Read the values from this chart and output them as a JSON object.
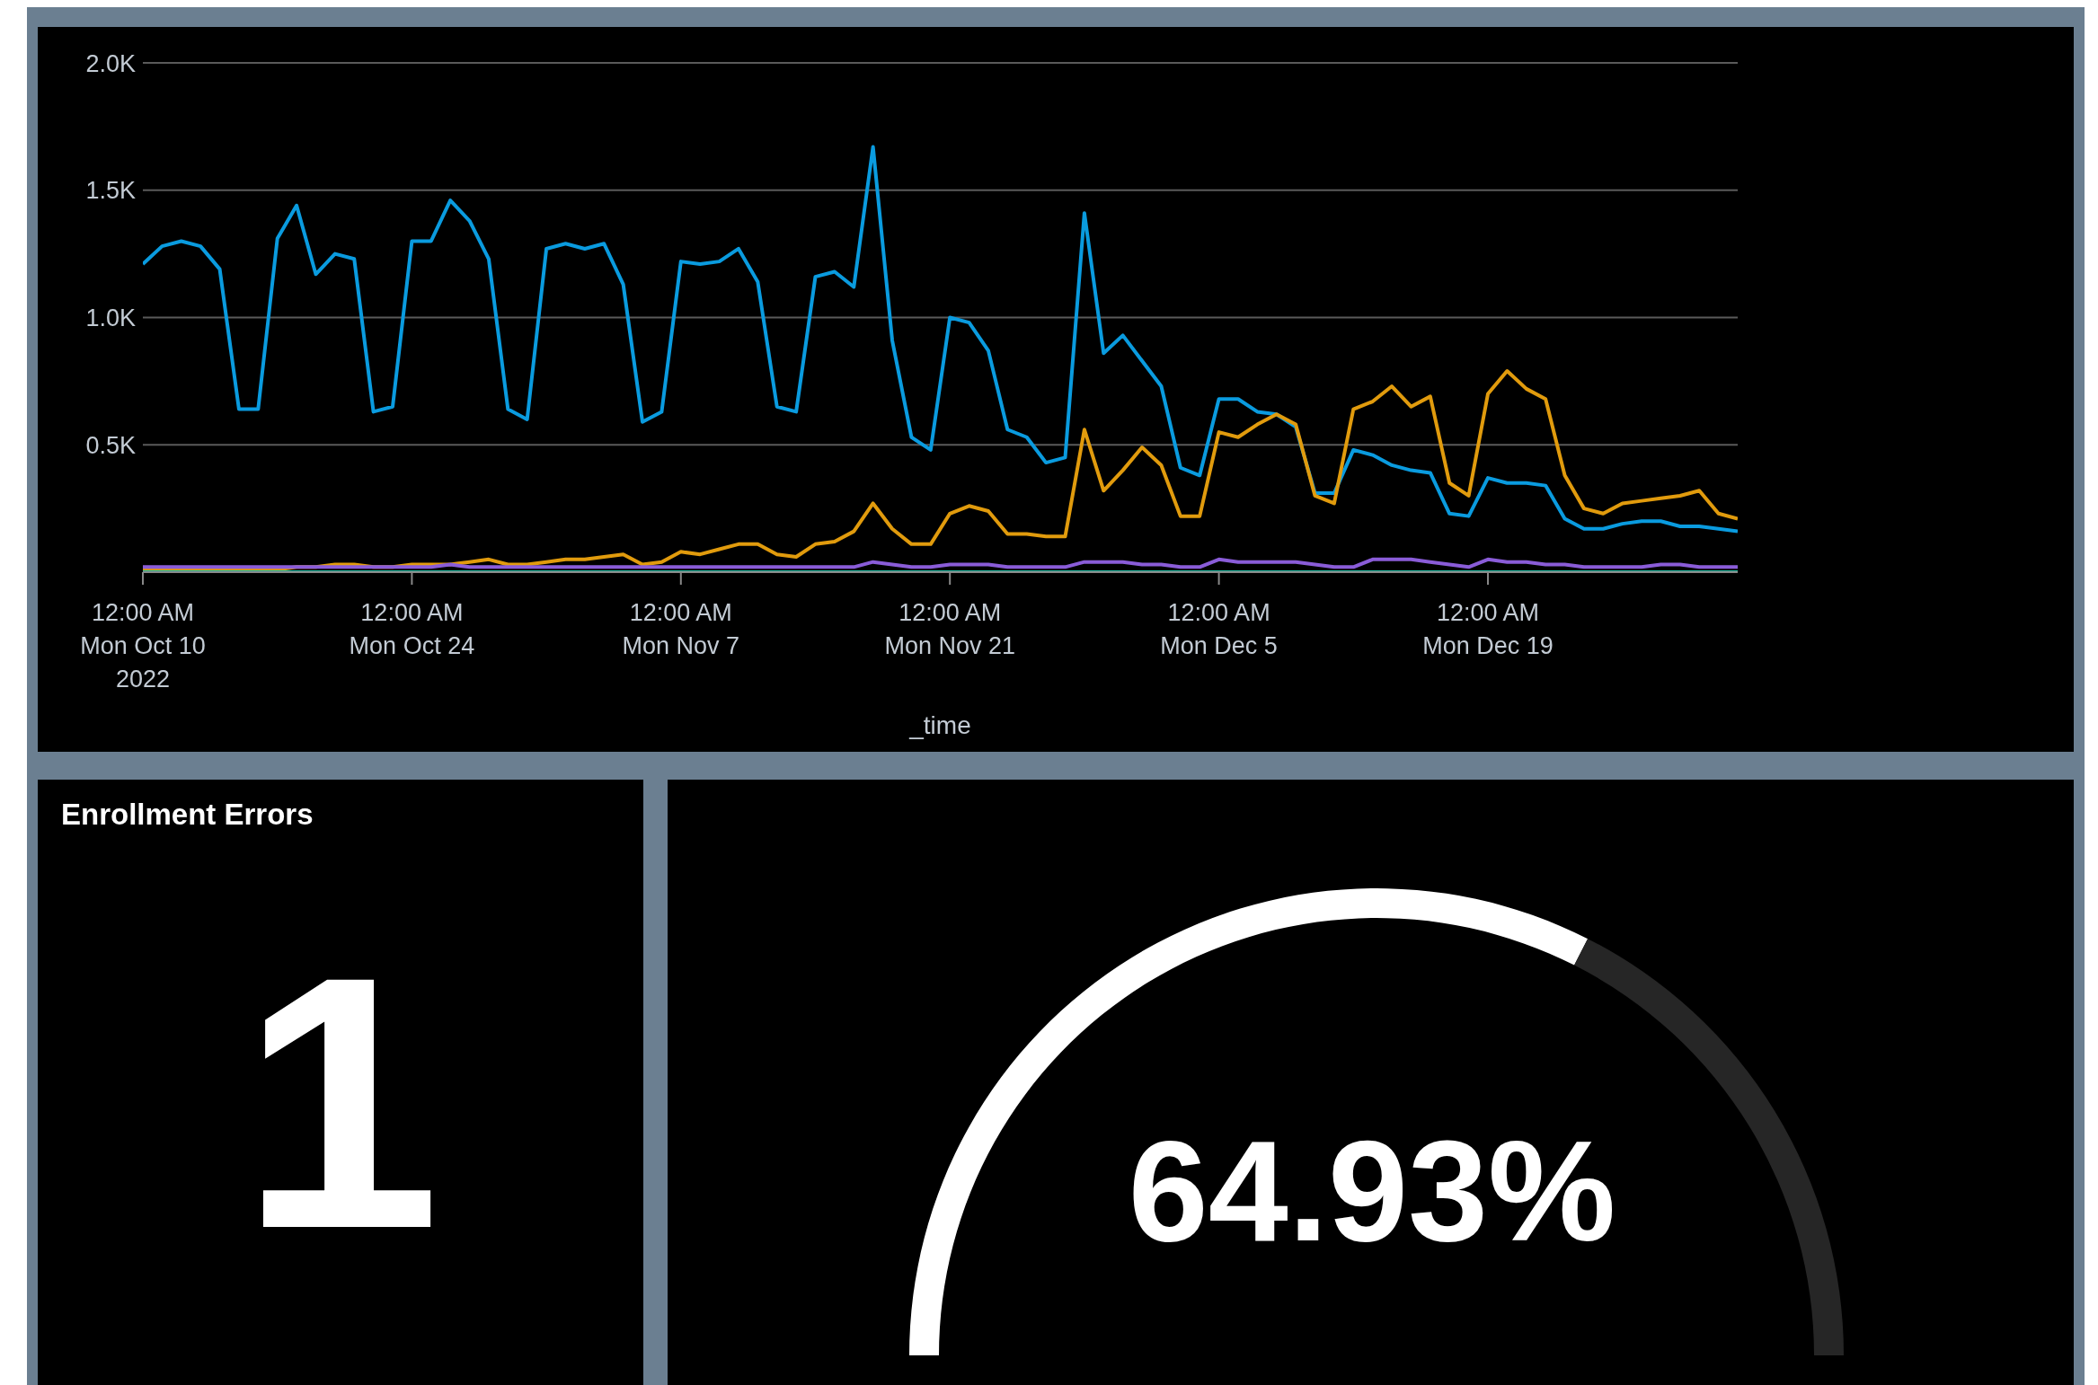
{
  "chart_data": [
    {
      "type": "line",
      "xlabel": "_time",
      "grid": "y",
      "marker": "none",
      "line_style": "solid",
      "x": [
        "2022-10-10",
        "2022-10-11",
        "2022-10-12",
        "2022-10-13",
        "2022-10-14",
        "2022-10-15",
        "2022-10-16",
        "2022-10-17",
        "2022-10-18",
        "2022-10-19",
        "2022-10-20",
        "2022-10-21",
        "2022-10-22",
        "2022-10-23",
        "2022-10-24",
        "2022-10-25",
        "2022-10-26",
        "2022-10-27",
        "2022-10-28",
        "2022-10-29",
        "2022-10-30",
        "2022-10-31",
        "2022-11-01",
        "2022-11-02",
        "2022-11-03",
        "2022-11-04",
        "2022-11-05",
        "2022-11-06",
        "2022-11-07",
        "2022-11-08",
        "2022-11-09",
        "2022-11-10",
        "2022-11-11",
        "2022-11-12",
        "2022-11-13",
        "2022-11-14",
        "2022-11-15",
        "2022-11-16",
        "2022-11-17",
        "2022-11-18",
        "2022-11-19",
        "2022-11-20",
        "2022-11-21",
        "2022-11-22",
        "2022-11-23",
        "2022-11-24",
        "2022-11-25",
        "2022-11-26",
        "2022-11-27",
        "2022-11-28",
        "2022-11-29",
        "2022-11-30",
        "2022-12-01",
        "2022-12-02",
        "2022-12-03",
        "2022-12-04",
        "2022-12-05",
        "2022-12-06",
        "2022-12-07",
        "2022-12-08",
        "2022-12-09",
        "2022-12-10",
        "2022-12-11",
        "2022-12-12",
        "2022-12-13",
        "2022-12-14",
        "2022-12-15",
        "2022-12-16",
        "2022-12-17",
        "2022-12-18",
        "2022-12-19",
        "2022-12-20",
        "2022-12-21",
        "2022-12-22",
        "2022-12-23",
        "2022-12-24",
        "2022-12-25",
        "2022-12-26",
        "2022-12-27",
        "2022-12-28",
        "2022-12-29",
        "2022-12-30",
        "2022-12-31",
        "2023-01-01"
      ],
      "series": [
        {
          "color": "#8a5cd8",
          "values": [
            20,
            20,
            20,
            20,
            20,
            20,
            20,
            20,
            20,
            20,
            20,
            20,
            20,
            20,
            20,
            20,
            30,
            20,
            20,
            20,
            20,
            20,
            20,
            20,
            20,
            20,
            20,
            20,
            20,
            20,
            20,
            20,
            20,
            20,
            20,
            20,
            20,
            20,
            40,
            30,
            20,
            20,
            30,
            30,
            30,
            20,
            20,
            20,
            20,
            40,
            40,
            40,
            30,
            30,
            20,
            20,
            50,
            40,
            40,
            40,
            40,
            30,
            20,
            20,
            50,
            50,
            50,
            40,
            30,
            20,
            50,
            40,
            40,
            30,
            30,
            20,
            20,
            20,
            20,
            30,
            30,
            20,
            20,
            20
          ]
        },
        {
          "color": "#0a9bdf",
          "values": [
            1210,
            1280,
            1300,
            1280,
            1190,
            640,
            640,
            1310,
            1440,
            1170,
            1250,
            1230,
            630,
            650,
            1300,
            1300,
            1460,
            1380,
            1230,
            640,
            600,
            1270,
            1290,
            1270,
            1290,
            1130,
            590,
            630,
            1220,
            1210,
            1220,
            1270,
            1140,
            650,
            630,
            1160,
            1180,
            1120,
            1670,
            910,
            530,
            480,
            1000,
            980,
            870,
            560,
            530,
            430,
            450,
            1410,
            860,
            930,
            830,
            730,
            410,
            380,
            680,
            680,
            630,
            620,
            570,
            310,
            310,
            480,
            460,
            420,
            400,
            390,
            230,
            220,
            370,
            350,
            350,
            340,
            210,
            170,
            170,
            190,
            200,
            200,
            180,
            180,
            170,
            160
          ]
        },
        {
          "color": "#1fb8a0",
          "values": [
            0,
            0,
            0,
            0,
            0,
            0,
            0,
            0,
            0,
            0,
            0,
            0,
            0,
            0,
            0,
            0,
            0,
            0,
            0,
            0,
            0,
            0,
            0,
            0,
            0,
            0,
            0,
            0,
            0,
            0,
            0,
            0,
            0,
            0,
            0,
            0,
            0,
            0,
            0,
            0,
            0,
            0,
            0,
            0,
            0,
            0,
            0,
            0,
            0,
            0,
            0,
            0,
            0,
            0,
            0,
            0,
            0,
            0,
            0,
            0,
            0,
            0,
            0,
            0,
            0,
            0,
            0,
            0,
            0,
            0,
            0,
            0,
            0,
            0,
            0,
            0,
            0,
            0,
            0,
            0,
            0,
            0,
            0,
            0
          ]
        },
        {
          "color": "#e19b0d",
          "values": [
            10,
            10,
            10,
            10,
            10,
            10,
            10,
            10,
            20,
            20,
            30,
            30,
            20,
            20,
            30,
            30,
            30,
            40,
            50,
            30,
            30,
            40,
            50,
            50,
            60,
            70,
            30,
            40,
            80,
            70,
            90,
            110,
            110,
            70,
            60,
            110,
            120,
            160,
            270,
            170,
            110,
            110,
            230,
            260,
            240,
            150,
            150,
            140,
            140,
            560,
            320,
            400,
            490,
            420,
            220,
            220,
            550,
            530,
            580,
            620,
            580,
            300,
            270,
            640,
            670,
            730,
            650,
            690,
            350,
            300,
            700,
            790,
            720,
            680,
            380,
            250,
            230,
            270,
            280,
            290,
            300,
            320,
            230,
            210
          ]
        }
      ],
      "xlim": [
        "2022-10-10",
        "2023-01-01"
      ],
      "xticks": [
        {
          "value": "2022-10-10",
          "label": "12:00 AM\nMon Oct 10\n2022"
        },
        {
          "value": "2022-10-24",
          "label": "12:00 AM\nMon Oct 24"
        },
        {
          "value": "2022-11-07",
          "label": "12:00 AM\nMon Nov 7"
        },
        {
          "value": "2022-11-21",
          "label": "12:00 AM\nMon Nov 21"
        },
        {
          "value": "2022-12-05",
          "label": "12:00 AM\nMon Dec 5"
        },
        {
          "value": "2022-12-19",
          "label": "12:00 AM\nMon Dec 19"
        }
      ],
      "ylim": [
        0,
        2000
      ],
      "yticks": [
        {
          "value": 0,
          "label": null
        },
        {
          "value": 500,
          "label": "0.5K"
        },
        {
          "value": 1000,
          "label": "1.0K"
        },
        {
          "value": 1500,
          "label": "1.5K"
        },
        {
          "value": 2000,
          "label": "2.0K"
        }
      ]
    },
    {
      "type": "other",
      "title": "Enrollment Errors",
      "values": [
        1
      ],
      "data_labels": true
    },
    {
      "type": "donut",
      "categories": [
        null,
        null
      ],
      "values": [
        64.93,
        35.07
      ],
      "colors": [
        "#ffffff",
        "#262626"
      ],
      "value_labels": [
        "64.93%",
        null
      ]
    }
  ]
}
